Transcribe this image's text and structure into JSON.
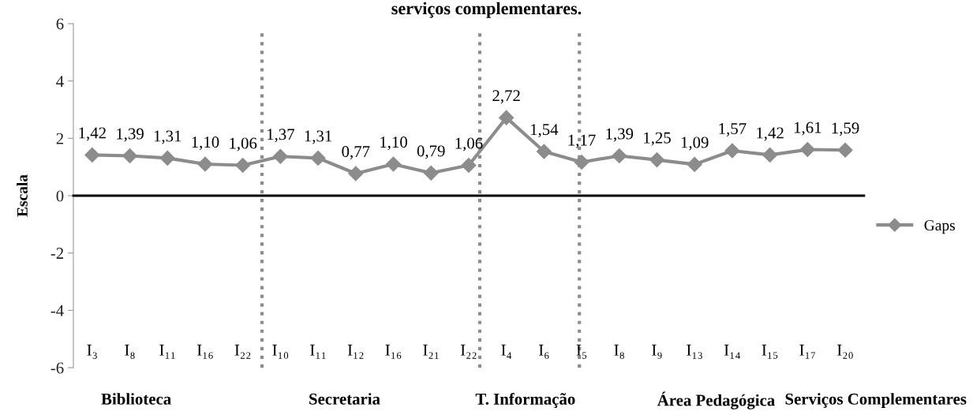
{
  "chart_data": {
    "type": "line",
    "title": "serviços complementares.",
    "ylabel": "Escala",
    "categories": [
      "I₃",
      "I₈",
      "I₁₁",
      "I₁₆",
      "I₂₂",
      "I₁₀",
      "I₁₁",
      "I₁₂",
      "I₁₆",
      "I₂₁",
      "I₂₂",
      "I₄",
      "I₆",
      "I₅",
      "I₈",
      "I₉",
      "I₁₃",
      "I₁₄",
      "I₁₅",
      "I₁₇",
      "I₂₀"
    ],
    "series": [
      {
        "name": "Gaps",
        "color": "#8c8c8c",
        "values": [
          1.42,
          1.39,
          1.31,
          1.1,
          1.06,
          1.37,
          1.31,
          0.77,
          1.1,
          0.79,
          1.06,
          2.72,
          1.54,
          1.17,
          1.39,
          1.25,
          1.09,
          1.57,
          1.42,
          1.61,
          1.59
        ],
        "value_labels": [
          "1,42",
          "1,39",
          "1,31",
          "1,10",
          "1,06",
          "1,37",
          "1,31",
          "0,77",
          "1,10",
          "0,79",
          "1,06",
          "2,72",
          "1,54",
          "1,17",
          "1,39",
          "1,25",
          "1,09",
          "1,57",
          "1,42",
          "1,61",
          "1,59"
        ]
      }
    ],
    "ylim": [
      -6,
      6
    ],
    "yticks": [
      -6,
      -4,
      -2,
      0,
      2,
      4,
      6
    ],
    "annotations": [
      "Biblioteca",
      "Secretaria",
      "T. Informação",
      "Área Pedagógica",
      "Serviços Complementares"
    ],
    "marker": "diamond",
    "line_style": "solid",
    "legend": "right"
  }
}
